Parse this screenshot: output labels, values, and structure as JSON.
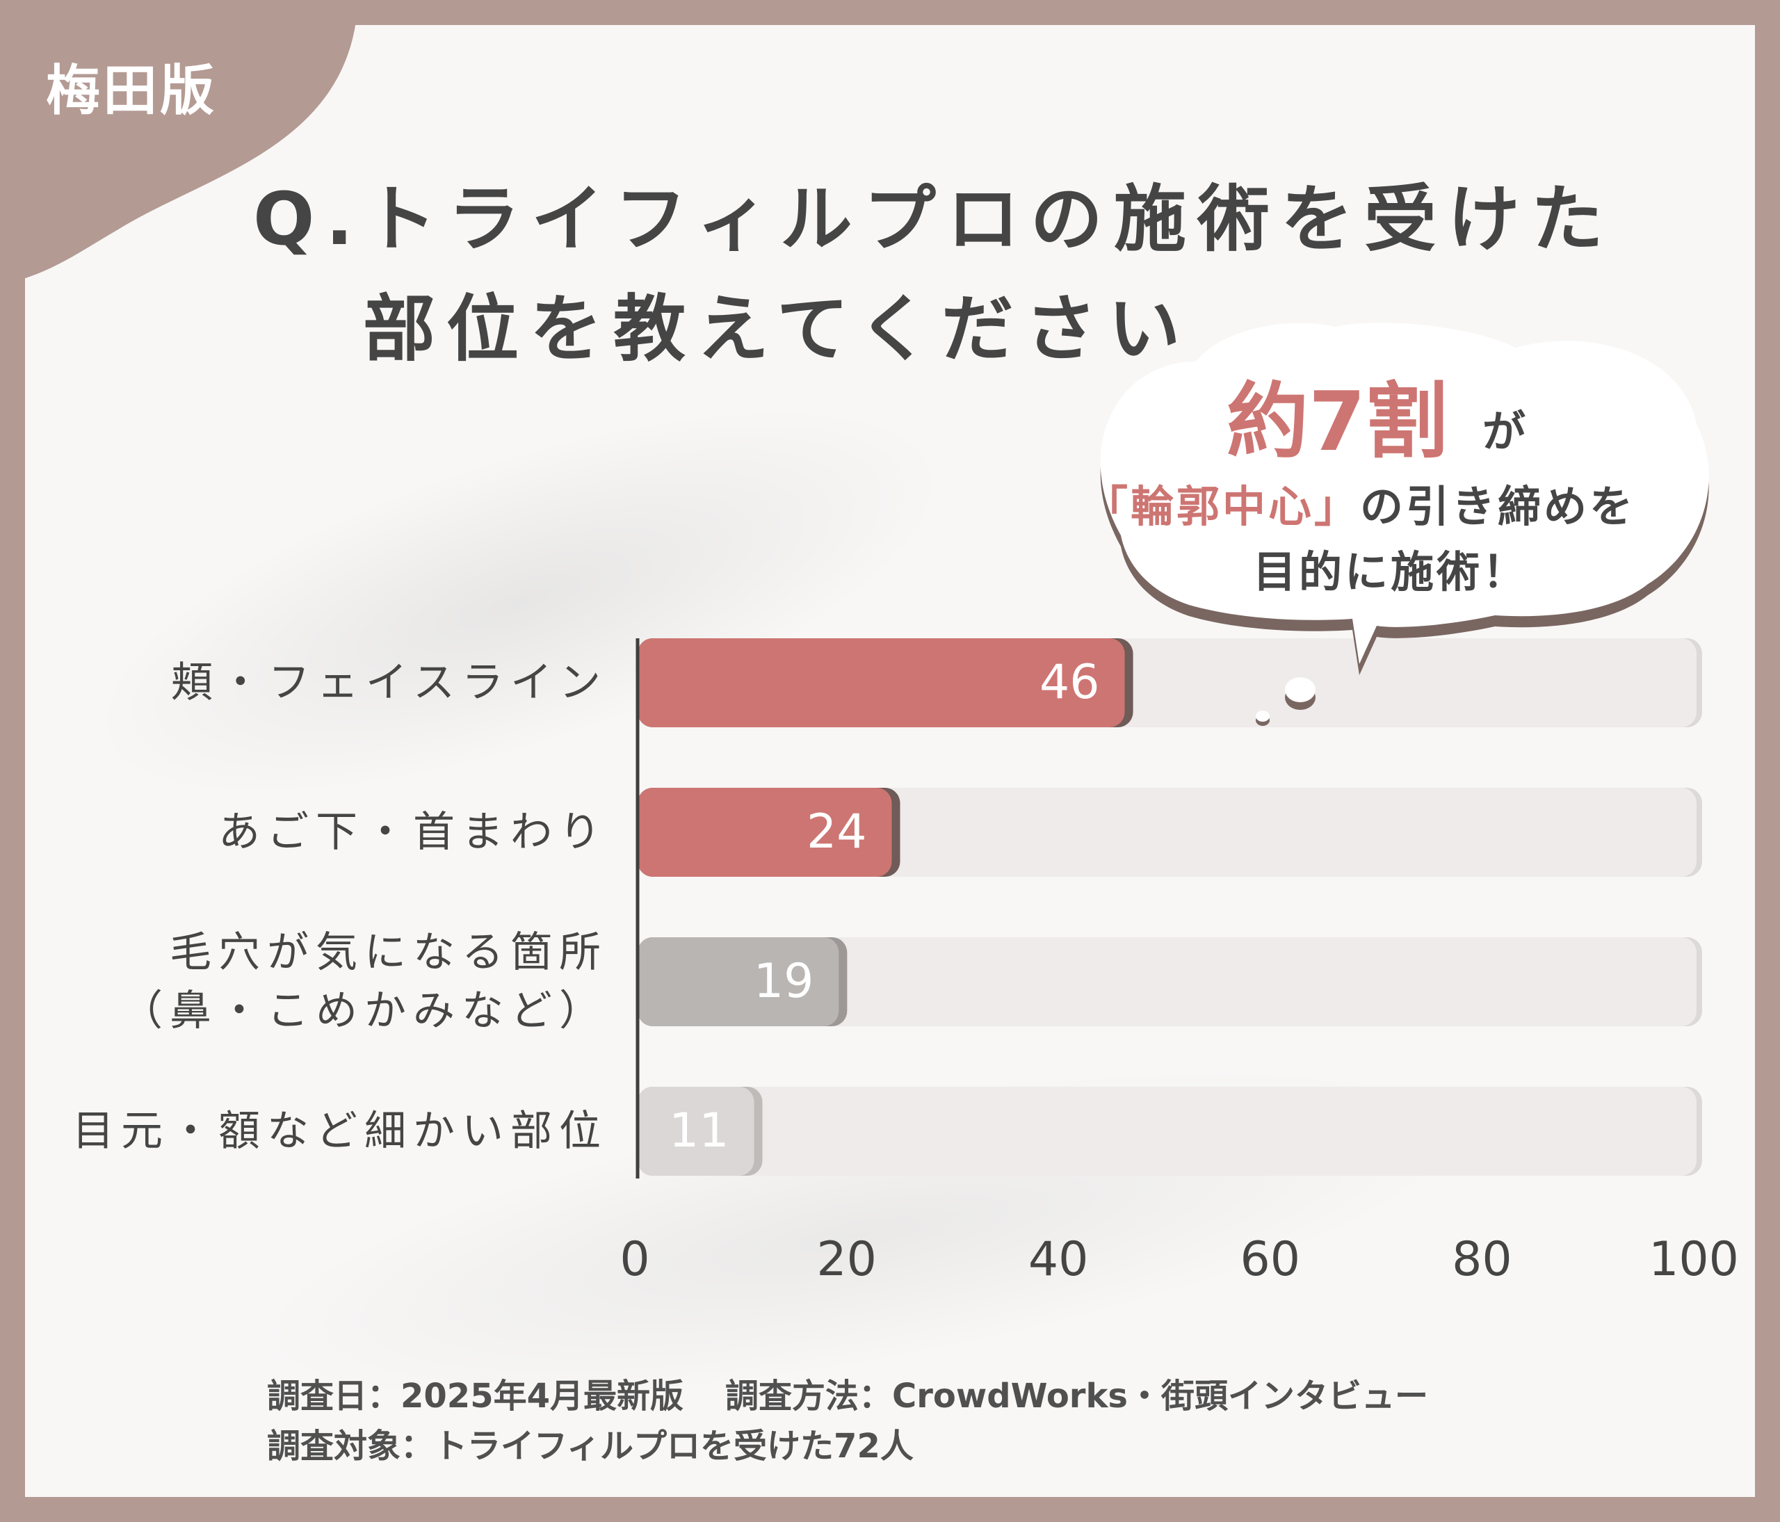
{
  "badge": "梅田版",
  "title": {
    "line1": "Q.トライフィルプロの施術を受けた",
    "line2": "部位を教えてください"
  },
  "callout": {
    "emphasis": "約7割",
    "particle": "が",
    "highlight": "「輪郭中心」",
    "line2_rest": "の引き締めを",
    "line3": "目的に施術！"
  },
  "chart_data": {
    "type": "bar",
    "orientation": "horizontal",
    "categories": [
      "頬・フェイスライン",
      "あご下・首まわり",
      "毛穴が気になる箇所\n（鼻・こめかみなど）",
      "目元・額など細かい部位"
    ],
    "values": [
      46,
      24,
      19,
      11
    ],
    "xlim": [
      0,
      100
    ],
    "x_ticks": [
      "0",
      "20",
      "40",
      "60",
      "80",
      "100"
    ],
    "data_labels": [
      "46",
      "24",
      "19",
      "11"
    ],
    "grid": false,
    "colors": {
      "highlight": "#cd7572",
      "medium": "#b9b5b3",
      "light": "#dad7d6",
      "track": "#eeebea"
    }
  },
  "footer": {
    "date": "調査日：2025年4月最新版",
    "method": "調査方法：CrowdWorks・街頭インタビュー",
    "target": "調査対象：トライフィルプロを受けた72人"
  },
  "colors": {
    "frame": "#b39a93",
    "text": "#454545",
    "accent": "#cd7572",
    "callout_bg": "#ffffff",
    "callout_shadow": "#7a6661"
  }
}
